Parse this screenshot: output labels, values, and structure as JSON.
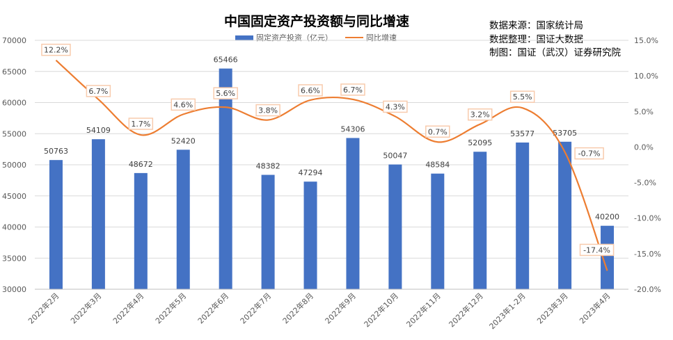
{
  "header": {
    "title": "中国固定资产投资额与同比增速",
    "source_lines": [
      "数据来源：国家统计局",
      "数据整理：国证大数据",
      "制图：国证（武汉）证券研究院"
    ]
  },
  "chart_data": {
    "type": "bar",
    "title": "中国固定资产投资额与同比增速",
    "categories": [
      "2022年2月",
      "2022年3月",
      "2022年4月",
      "2022年5月",
      "2022年6月",
      "2022年7月",
      "2022年8月",
      "2022年9月",
      "2022年10月",
      "2022年11月",
      "2022年12月",
      "2023年1-2月",
      "2023年3月",
      "2023年4月"
    ],
    "series": [
      {
        "name": "固定资产投资（亿元）",
        "type": "bar",
        "axis": "left",
        "color": "#4472C4",
        "values": [
          50763,
          54109,
          48672,
          52420,
          65466,
          48382,
          47294,
          54306,
          50047,
          48584,
          52095,
          53577,
          53705,
          40200
        ],
        "labels": [
          "50763",
          "54109",
          "48672",
          "52420",
          "65466",
          "48382",
          "47294",
          "54306",
          "50047",
          "48584",
          "52095",
          "53577",
          "53705",
          "40200"
        ]
      },
      {
        "name": "同比增速",
        "type": "line",
        "axis": "right",
        "color": "#ED7D31",
        "smooth": true,
        "values": [
          12.2,
          6.7,
          1.7,
          4.6,
          5.6,
          3.8,
          6.6,
          6.7,
          4.3,
          0.7,
          3.2,
          5.5,
          -0.7,
          -17.4
        ],
        "labels": [
          "12.2%",
          "6.7%",
          "1.7%",
          "4.6%",
          "5.6%",
          "3.8%",
          "6.6%",
          "6.7%",
          "4.3%",
          "0.7%",
          "3.2%",
          "5.5%",
          "-0.7%",
          "-17.4%"
        ]
      }
    ],
    "y_left": {
      "min": 30000,
      "max": 70000,
      "ticks": [
        30000,
        35000,
        40000,
        45000,
        50000,
        55000,
        60000,
        65000,
        70000
      ],
      "tick_labels": [
        "30000",
        "35000",
        "40000",
        "45000",
        "50000",
        "55000",
        "60000",
        "65000",
        "70000"
      ]
    },
    "y_right": {
      "min": -20,
      "max": 15,
      "ticks": [
        -20,
        -15,
        -10,
        -5,
        0,
        5,
        10,
        15
      ],
      "tick_labels": [
        "-20.0%",
        "-15.0%",
        "-10.0%",
        "-5.0%",
        "0.0%",
        "5.0%",
        "10.0%",
        "15.0%"
      ]
    },
    "grid": true,
    "legend": "top-center"
  }
}
